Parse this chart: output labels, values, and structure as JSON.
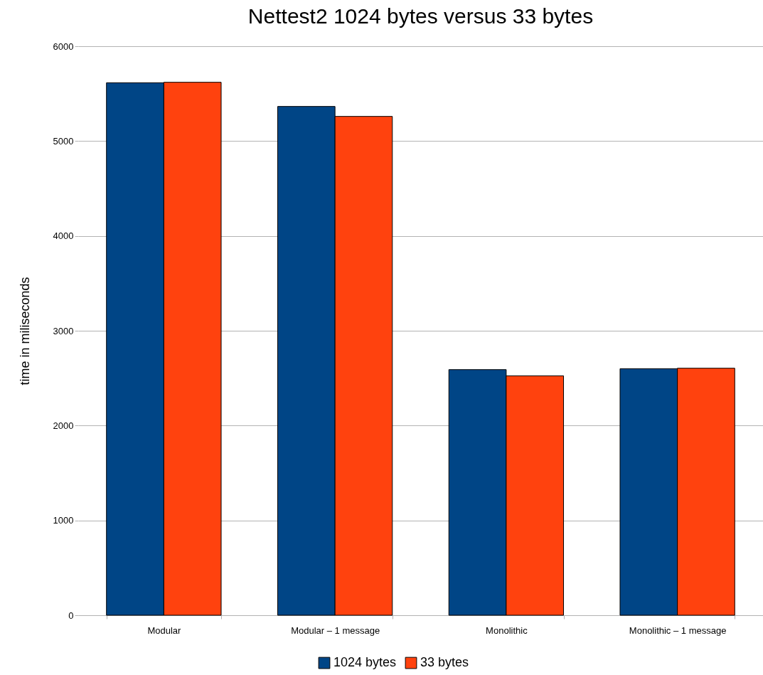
{
  "chart_data": {
    "type": "bar",
    "title": "Nettest2 1024 bytes versus 33 bytes",
    "ylabel": "time in miliseconds",
    "categories": [
      "Modular",
      "Modular – 1 message",
      "Monolithic",
      "Monolithic – 1 message"
    ],
    "series": [
      {
        "name": "1024 bytes",
        "color": "#004586",
        "values": [
          5615,
          5365,
          2590,
          2600
        ]
      },
      {
        "name": "33 bytes",
        "color": "#ff420e",
        "values": [
          5620,
          5260,
          2525,
          2605
        ]
      }
    ],
    "ylim": [
      0,
      6000
    ],
    "yticks": [
      0,
      1000,
      2000,
      3000,
      4000,
      5000,
      6000
    ],
    "grid": "y",
    "legend": "bottom"
  }
}
